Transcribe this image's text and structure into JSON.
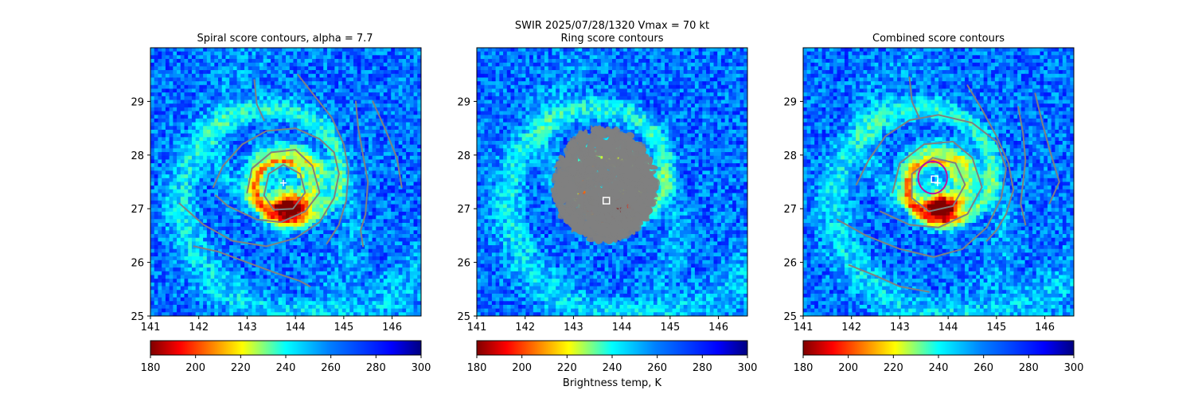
{
  "figure": {
    "suptitle": "SWIR  2025/07/28/1320    Vmax = 70 kt",
    "colorbar_label": "Brightness temp, K"
  },
  "chart_data": [
    {
      "type": "heatmap",
      "title": "Spiral score contours, alpha =  7.7",
      "xlim": [
        141,
        146.6
      ],
      "ylim": [
        25,
        30
      ],
      "xticks": [
        "141",
        "142",
        "143",
        "144",
        "145",
        "146"
      ],
      "yticks": [
        "25",
        "26",
        "27",
        "28",
        "29"
      ],
      "colormap": "jet_r",
      "colorbar": {
        "range": [
          180,
          300
        ],
        "ticks": [
          "180",
          "200",
          "220",
          "240",
          "260",
          "280",
          "300"
        ]
      },
      "center_marker": {
        "type": "plus",
        "lon": 143.75,
        "lat": 27.48
      },
      "contour_color": "#808080",
      "contours": [
        [
          [
            143.75,
            27.82
          ],
          [
            144.1,
            27.65
          ],
          [
            144.2,
            27.3
          ],
          [
            143.95,
            27.0
          ],
          [
            143.55,
            26.98
          ],
          [
            143.35,
            27.25
          ],
          [
            143.45,
            27.65
          ],
          [
            143.75,
            27.82
          ]
        ],
        [
          [
            143.0,
            27.3
          ],
          [
            143.1,
            27.75
          ],
          [
            143.5,
            28.05
          ],
          [
            144.0,
            28.1
          ],
          [
            144.35,
            27.8
          ],
          [
            144.5,
            27.3
          ],
          [
            144.2,
            26.95
          ],
          [
            143.7,
            26.75
          ],
          [
            143.2,
            26.8
          ],
          [
            142.6,
            27.05
          ],
          [
            142.35,
            27.25
          ]
        ],
        [
          [
            141.6,
            27.1
          ],
          [
            142.1,
            26.7
          ],
          [
            142.7,
            26.4
          ],
          [
            143.4,
            26.3
          ],
          [
            144.0,
            26.45
          ],
          [
            144.5,
            26.75
          ],
          [
            144.8,
            27.2
          ],
          [
            144.9,
            27.65
          ],
          [
            144.8,
            28.05
          ],
          [
            144.5,
            28.3
          ],
          [
            144.0,
            28.5
          ],
          [
            143.4,
            28.45
          ],
          [
            142.9,
            28.2
          ],
          [
            142.5,
            27.8
          ],
          [
            142.3,
            27.4
          ]
        ],
        [
          [
            141.9,
            26.3
          ],
          [
            142.4,
            26.2
          ],
          [
            143.0,
            26.0
          ],
          [
            143.6,
            25.8
          ],
          [
            144.1,
            25.65
          ],
          [
            144.3,
            25.55
          ]
        ],
        [
          [
            144.05,
            29.5
          ],
          [
            144.4,
            29.1
          ],
          [
            144.75,
            28.7
          ],
          [
            145.0,
            28.2
          ],
          [
            145.1,
            27.7
          ],
          [
            145.05,
            27.15
          ],
          [
            144.9,
            26.7
          ],
          [
            144.65,
            26.35
          ]
        ],
        [
          [
            145.6,
            29.0
          ],
          [
            145.85,
            28.5
          ],
          [
            146.1,
            27.95
          ],
          [
            146.2,
            27.4
          ]
        ],
        [
          [
            145.25,
            29.0
          ],
          [
            145.3,
            28.5
          ],
          [
            145.4,
            28.0
          ],
          [
            145.5,
            27.5
          ],
          [
            145.45,
            26.9
          ],
          [
            145.35,
            26.6
          ],
          [
            145.4,
            26.3
          ]
        ],
        [
          [
            143.15,
            29.4
          ],
          [
            143.2,
            28.95
          ],
          [
            143.35,
            28.65
          ]
        ]
      ],
      "ring_contours": []
    },
    {
      "type": "heatmap",
      "title": "Ring score contours",
      "xlim": [
        141,
        146.6
      ],
      "ylim": [
        25,
        30
      ],
      "xticks": [
        "141",
        "142",
        "143",
        "144",
        "145",
        "146"
      ],
      "yticks": [
        "25",
        "26",
        "27",
        "28",
        "29"
      ],
      "colormap": "jet_r",
      "colorbar": {
        "range": [
          180,
          300
        ],
        "ticks": [
          "180",
          "200",
          "220",
          "240",
          "260",
          "280",
          "300"
        ]
      },
      "center_marker": {
        "type": "square",
        "lon": 143.68,
        "lat": 27.15
      },
      "ring_region": {
        "lon": 143.65,
        "lat": 27.45,
        "radius_deg": 1.0,
        "color": "#808080"
      },
      "contours": [],
      "ring_contours": []
    },
    {
      "type": "heatmap",
      "title": "Combined score contours",
      "xlim": [
        141,
        146.6
      ],
      "ylim": [
        25,
        30
      ],
      "xticks": [
        "141",
        "142",
        "143",
        "144",
        "145",
        "146"
      ],
      "yticks": [
        "25",
        "26",
        "27",
        "28",
        "29"
      ],
      "colormap": "jet_r",
      "colorbar": {
        "range": [
          180,
          300
        ],
        "ticks": [
          "180",
          "200",
          "220",
          "240",
          "260",
          "280",
          "300"
        ]
      },
      "center_marker": {
        "type": "square",
        "lon": 143.72,
        "lat": 27.55
      },
      "extra_marker": {
        "type": "plus",
        "lon": 143.78,
        "lat": 27.48
      },
      "contour_color": "#808080",
      "ring_contours": [
        {
          "lon": 143.68,
          "lat": 27.58,
          "r": 0.3,
          "color": "#c0109c"
        }
      ],
      "contours": [
        [
          [
            143.68,
            27.95
          ],
          [
            144.15,
            27.85
          ],
          [
            144.35,
            27.45
          ],
          [
            144.1,
            27.05
          ],
          [
            143.6,
            26.95
          ],
          [
            143.25,
            27.2
          ],
          [
            143.25,
            27.65
          ],
          [
            143.68,
            27.95
          ]
        ],
        [
          [
            142.85,
            27.3
          ],
          [
            143.0,
            27.85
          ],
          [
            143.5,
            28.2
          ],
          [
            144.1,
            28.25
          ],
          [
            144.5,
            27.95
          ],
          [
            144.7,
            27.4
          ],
          [
            144.4,
            26.9
          ],
          [
            143.8,
            26.65
          ],
          [
            143.2,
            26.7
          ],
          [
            142.6,
            26.95
          ]
        ],
        [
          [
            141.7,
            26.8
          ],
          [
            142.3,
            26.5
          ],
          [
            143.0,
            26.25
          ],
          [
            143.7,
            26.1
          ],
          [
            144.3,
            26.25
          ],
          [
            144.8,
            26.65
          ],
          [
            145.1,
            27.2
          ],
          [
            145.2,
            27.75
          ],
          [
            145.0,
            28.25
          ],
          [
            144.5,
            28.6
          ],
          [
            143.8,
            28.75
          ],
          [
            143.2,
            28.65
          ],
          [
            142.7,
            28.35
          ],
          [
            142.35,
            27.9
          ],
          [
            142.1,
            27.45
          ]
        ],
        [
          [
            141.95,
            25.95
          ],
          [
            142.5,
            25.75
          ],
          [
            143.0,
            25.55
          ],
          [
            143.6,
            25.45
          ]
        ],
        [
          [
            143.2,
            29.45
          ],
          [
            143.25,
            29.0
          ],
          [
            143.4,
            28.7
          ]
        ],
        [
          [
            144.4,
            29.3
          ],
          [
            144.7,
            28.85
          ],
          [
            145.0,
            28.35
          ],
          [
            145.25,
            27.85
          ],
          [
            145.35,
            27.35
          ],
          [
            145.2,
            26.9
          ],
          [
            145.0,
            26.6
          ],
          [
            144.8,
            26.4
          ]
        ],
        [
          [
            145.8,
            29.15
          ],
          [
            145.95,
            28.6
          ],
          [
            146.1,
            28.1
          ],
          [
            146.3,
            27.5
          ],
          [
            146.1,
            27.1
          ]
        ],
        [
          [
            145.45,
            28.9
          ],
          [
            145.55,
            28.4
          ],
          [
            145.6,
            27.9
          ],
          [
            145.55,
            27.5
          ],
          [
            145.5,
            27.1
          ],
          [
            145.6,
            26.7
          ]
        ]
      ]
    }
  ]
}
